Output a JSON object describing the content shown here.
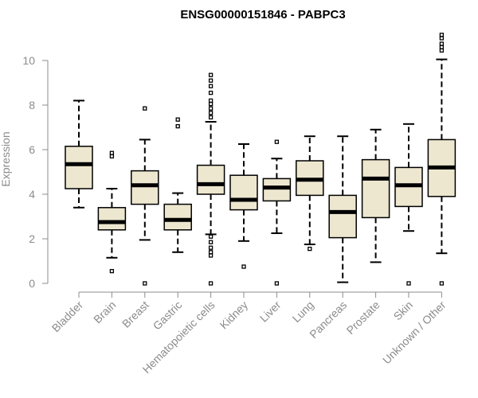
{
  "chart_data": {
    "type": "boxplot",
    "title": "ENSG00000151846 - PABPC3",
    "xlabel": "",
    "ylabel": "Expression",
    "ylim": [
      0,
      11.2
    ],
    "yticks": [
      0,
      2,
      4,
      6,
      8,
      10
    ],
    "grid": false,
    "box_fill": "#ede7d0",
    "categories": [
      "Bladder",
      "Brain",
      "Breast",
      "Gastric",
      "Hematopoietic cells",
      "Kidney",
      "Liver",
      "Lung",
      "Pancreas",
      "Prostate",
      "Skin",
      "Unknown / Other"
    ],
    "boxes": [
      {
        "whislo": 3.4,
        "q1": 4.25,
        "med": 5.35,
        "q3": 6.15,
        "whishi": 8.2,
        "fliers": []
      },
      {
        "whislo": 1.15,
        "q1": 2.4,
        "med": 2.75,
        "q3": 3.4,
        "whishi": 4.25,
        "fliers": [
          0.55,
          5.7,
          5.85
        ]
      },
      {
        "whislo": 1.95,
        "q1": 3.55,
        "med": 4.4,
        "q3": 5.05,
        "whishi": 6.45,
        "fliers": [
          0,
          7.85
        ]
      },
      {
        "whislo": 1.4,
        "q1": 2.4,
        "med": 2.85,
        "q3": 3.55,
        "whishi": 4.05,
        "fliers": [
          7.05,
          7.35
        ]
      },
      {
        "whislo": 2.2,
        "q1": 4.0,
        "med": 4.45,
        "q3": 5.3,
        "whishi": 7.25,
        "fliers": [
          0,
          1.25,
          1.4,
          1.6,
          1.85,
          2.1,
          7.45,
          7.65,
          7.85,
          8.05,
          8.2,
          8.55,
          8.85,
          9.1,
          9.35
        ]
      },
      {
        "whislo": 1.9,
        "q1": 3.3,
        "med": 3.75,
        "q3": 4.85,
        "whishi": 6.25,
        "fliers": [
          0.75
        ]
      },
      {
        "whislo": 2.25,
        "q1": 3.7,
        "med": 4.3,
        "q3": 4.7,
        "whishi": 5.6,
        "fliers": [
          0,
          6.35
        ]
      },
      {
        "whislo": 1.75,
        "q1": 3.95,
        "med": 4.65,
        "q3": 5.5,
        "whishi": 6.6,
        "fliers": [
          1.55
        ]
      },
      {
        "whislo": 0.05,
        "q1": 2.05,
        "med": 3.2,
        "q3": 3.95,
        "whishi": 6.6,
        "fliers": []
      },
      {
        "whislo": 0.95,
        "q1": 2.95,
        "med": 4.7,
        "q3": 5.55,
        "whishi": 6.9,
        "fliers": []
      },
      {
        "whislo": 2.35,
        "q1": 3.45,
        "med": 4.4,
        "q3": 5.2,
        "whishi": 7.15,
        "fliers": [
          0
        ]
      },
      {
        "whislo": 1.35,
        "q1": 3.9,
        "med": 5.2,
        "q3": 6.45,
        "whishi": 10.05,
        "fliers": [
          0,
          10.45,
          10.6,
          10.75,
          11.0,
          11.15
        ]
      }
    ]
  }
}
